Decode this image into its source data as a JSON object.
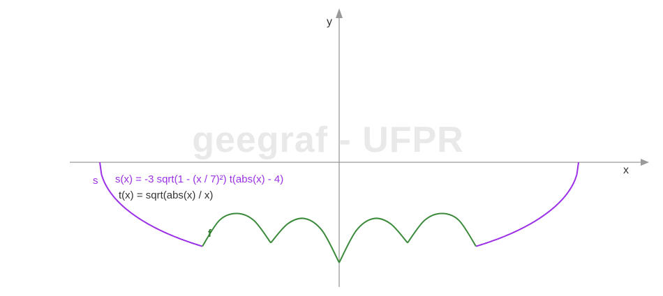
{
  "watermark": "geegraf - UFPR",
  "chart_data": {
    "type": "line",
    "xlabel": "x",
    "ylabel": "y",
    "grid": false,
    "equations": {
      "s": "s(x) = -3 sqrt(1 - (x / 7)²) t(abs(x) - 4)",
      "t": "t(x) = sqrt(abs(x) / x)"
    },
    "series": [
      {
        "name": "s",
        "color": "#9b30e6",
        "points_left": [
          [
            -7,
            0
          ],
          [
            -6.5,
            -1.11
          ],
          [
            -6,
            -1.55
          ],
          [
            -5.5,
            -1.86
          ],
          [
            -5,
            -2.1
          ],
          [
            -4.5,
            -2.3
          ],
          [
            -4,
            -2.46
          ]
        ],
        "points_right": [
          [
            4,
            -2.46
          ],
          [
            4.5,
            -2.3
          ],
          [
            5,
            -2.1
          ],
          [
            5.5,
            -1.86
          ],
          [
            6,
            -1.55
          ],
          [
            6.5,
            -1.11
          ],
          [
            7,
            0
          ]
        ]
      },
      {
        "name": "f",
        "color": "#3b8a3b",
        "points": [
          [
            -4,
            -2.46
          ],
          [
            -3.5,
            -1.7
          ],
          [
            -3,
            -1.5
          ],
          [
            -2.5,
            -1.7
          ],
          [
            -2,
            -2.36
          ],
          [
            -1.5,
            -1.8
          ],
          [
            -1,
            -1.65
          ],
          [
            -0.5,
            -2.0
          ],
          [
            0,
            -2.94
          ],
          [
            0.5,
            -2.0
          ],
          [
            1,
            -1.65
          ],
          [
            1.5,
            -1.8
          ],
          [
            2,
            -2.36
          ],
          [
            2.5,
            -1.7
          ],
          [
            3,
            -1.5
          ],
          [
            3.5,
            -1.7
          ],
          [
            4,
            -2.46
          ]
        ]
      }
    ]
  }
}
